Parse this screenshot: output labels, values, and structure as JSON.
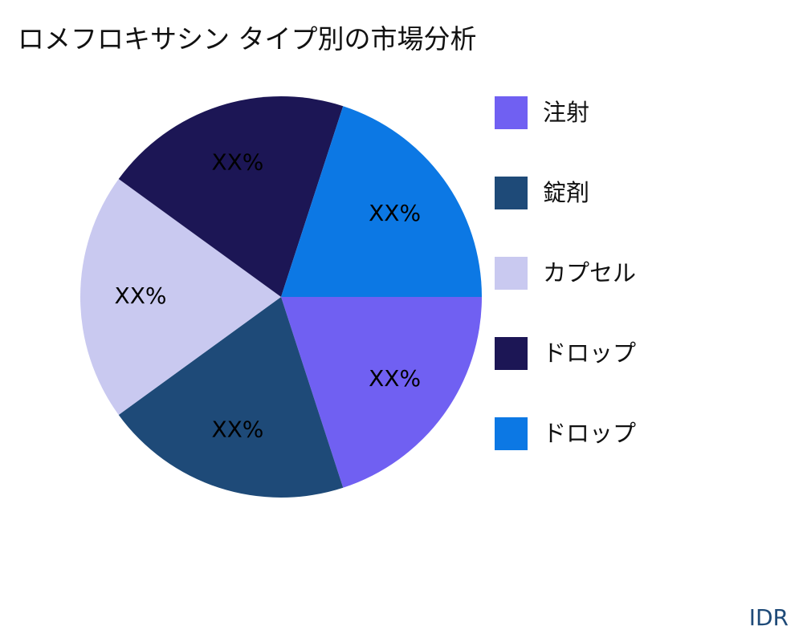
{
  "title": "ロメフロキサシン タイプ別の市場分析",
  "brand": "IDR",
  "chart_data": {
    "type": "pie",
    "title": "ロメフロキサシン タイプ別の市場分析",
    "legend_position": "right",
    "slices": [
      {
        "name": "注射",
        "value": 20,
        "label": "XX%",
        "color": "#7060f2"
      },
      {
        "name": "錠剤",
        "value": 20,
        "label": "XX%",
        "color": "#1e4a78"
      },
      {
        "name": "カプセル",
        "value": 20,
        "label": "XX%",
        "color": "#c9c9f0"
      },
      {
        "name": "ドロップ",
        "value": 20,
        "label": "XX%",
        "color": "#1c1655"
      },
      {
        "name": "ドロップ",
        "value": 20,
        "label": "XX%",
        "color": "#0c78e4"
      }
    ]
  }
}
